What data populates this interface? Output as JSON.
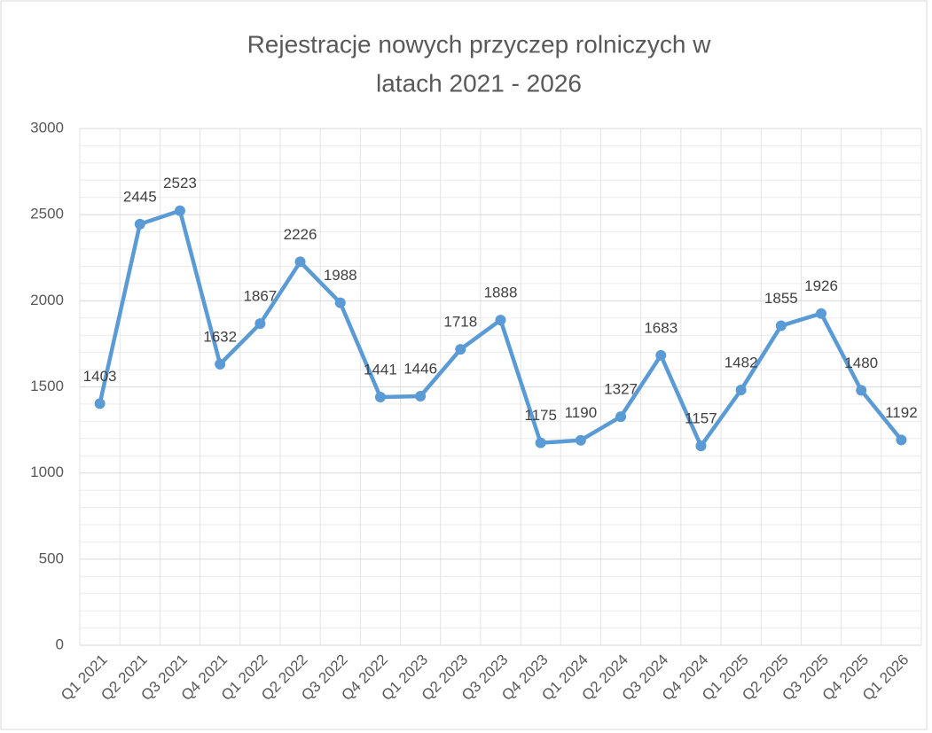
{
  "chart_data": {
    "type": "line",
    "title": [
      "Rejestracje nowych przyczep rolniczych w",
      "latach 2021 - 2026"
    ],
    "categories": [
      "Q1 2021",
      "Q2 2021",
      "Q3 2021",
      "Q4 2021",
      "Q1 2022",
      "Q2 2022",
      "Q3 2022",
      "Q4 2022",
      "Q1 2023",
      "Q2 2023",
      "Q3 2023",
      "Q4 2023",
      "Q1 2024",
      "Q2 2024",
      "Q3 2024",
      "Q4 2024",
      "Q1 2025",
      "Q2 2025",
      "Q3 2025",
      "Q4 2025",
      "Q1 2026"
    ],
    "values": [
      1403,
      2445,
      2523,
      1632,
      1867,
      2226,
      1988,
      1441,
      1446,
      1718,
      1888,
      1175,
      1190,
      1327,
      1683,
      1157,
      1482,
      1855,
      1926,
      1480,
      1192
    ],
    "color": "#5b9bd5",
    "ylim": [
      0,
      3000
    ],
    "yticks": [
      0,
      500,
      1000,
      1500,
      2000,
      2500,
      3000
    ],
    "grid": true,
    "minor_grid": true
  }
}
